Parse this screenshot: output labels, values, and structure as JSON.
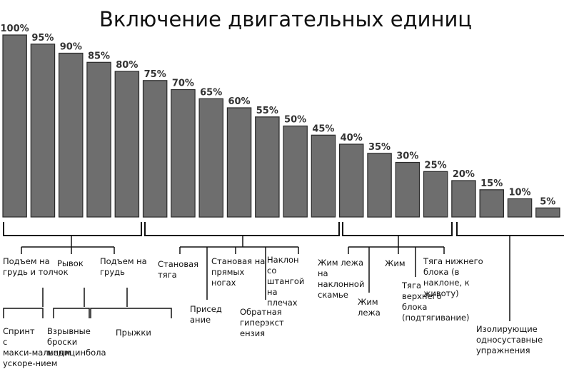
{
  "chart_data": {
    "type": "bar",
    "title": "Включение двигательных единиц",
    "xlabel": "",
    "ylabel": "",
    "ylim": [
      0,
      100
    ],
    "grid": false,
    "values": [
      100,
      95,
      90,
      85,
      80,
      75,
      70,
      65,
      60,
      55,
      50,
      45,
      40,
      35,
      30,
      25,
      20,
      15,
      10,
      5
    ],
    "value_labels": [
      "100%",
      "95%",
      "90%",
      "85%",
      "80%",
      "75%",
      "70%",
      "65%",
      "60%",
      "55%",
      "50%",
      "45%",
      "40%",
      "35%",
      "30%",
      "25%",
      "20%",
      "15%",
      "10%",
      "5%"
    ],
    "colors": {
      "bar": "#6e6e6e",
      "bar_stroke": "#2a2a2a",
      "line": "#111111"
    },
    "groups": [
      {
        "exercises": [
          "Подъем на грудь и толчок",
          "Рывок",
          "Подъем на грудь"
        ],
        "subgroups": [
          "Спринт с макси-мальным ускоре-нием",
          "Взрывные броски медицинбола",
          "Прыжки"
        ]
      },
      {
        "exercises": [
          "Становая тяга",
          "Присед ание",
          "Становая на прямых ногах",
          "Обратная гиперэкст ензия",
          "Наклон со штангой на плечах"
        ]
      },
      {
        "exercises": [
          "Жим лежа на наклонной скамье",
          "Жим лежа",
          "Жим",
          "Тяга верхнего блока (подтягивание)",
          "Тяга нижнего блока (в наклоне, к животу)"
        ]
      },
      {
        "exercises": [
          "Изолирующие односуставные упражнения"
        ]
      }
    ]
  }
}
